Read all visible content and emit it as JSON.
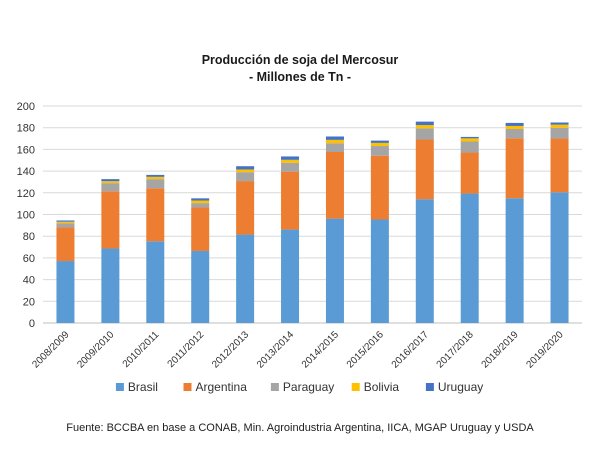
{
  "chart_data": {
    "type": "bar",
    "stacked": true,
    "title": "Producción de soja del Mercosur",
    "subtitle": "- Millones de Tn -",
    "xlabel": "",
    "ylabel": "",
    "ylim": [
      0,
      200
    ],
    "y_ticks": [
      0,
      20,
      40,
      60,
      80,
      100,
      120,
      140,
      160,
      180,
      200
    ],
    "grid": true,
    "legend_position": "bottom",
    "categories": [
      "2008/2009",
      "2009/2010",
      "2010/2011",
      "2011/2012",
      "2012/2013",
      "2013/2014",
      "2014/2015",
      "2015/2016",
      "2016/2017",
      "2017/2018",
      "2018/2019",
      "2019/2020"
    ],
    "series": [
      {
        "name": "Brasil",
        "color": "#5B9BD5",
        "values": [
          57.1,
          68.7,
          75.3,
          66.4,
          81.5,
          86.1,
          96.2,
          95.4,
          114.1,
          119.3,
          115.0,
          120.5
        ]
      },
      {
        "name": "Argentina",
        "color": "#ED7D31",
        "values": [
          31.0,
          52.7,
          48.9,
          40.1,
          49.3,
          53.4,
          61.4,
          58.8,
          55.0,
          37.8,
          55.3,
          49.5
        ]
      },
      {
        "name": "Paraguay",
        "color": "#A5A5A5",
        "values": [
          3.9,
          7.5,
          8.4,
          4.0,
          8.2,
          8.2,
          8.1,
          8.9,
          10.3,
          10.2,
          8.5,
          9.9
        ]
      },
      {
        "name": "Bolivia",
        "color": "#FFC000",
        "values": [
          1.4,
          1.8,
          2.1,
          2.4,
          2.5,
          2.7,
          3.1,
          2.9,
          3.0,
          2.9,
          2.8,
          2.9
        ]
      },
      {
        "name": "Uruguay",
        "color": "#4472C4",
        "values": [
          1.1,
          1.9,
          1.8,
          2.0,
          3.0,
          3.1,
          3.1,
          2.1,
          3.2,
          1.3,
          2.8,
          2.0
        ]
      }
    ]
  },
  "footer": {
    "source": "Fuente: BCCBA en base a CONAB, Min. Agroindustria Argentina, IICA, MGAP Uruguay y USDA"
  }
}
